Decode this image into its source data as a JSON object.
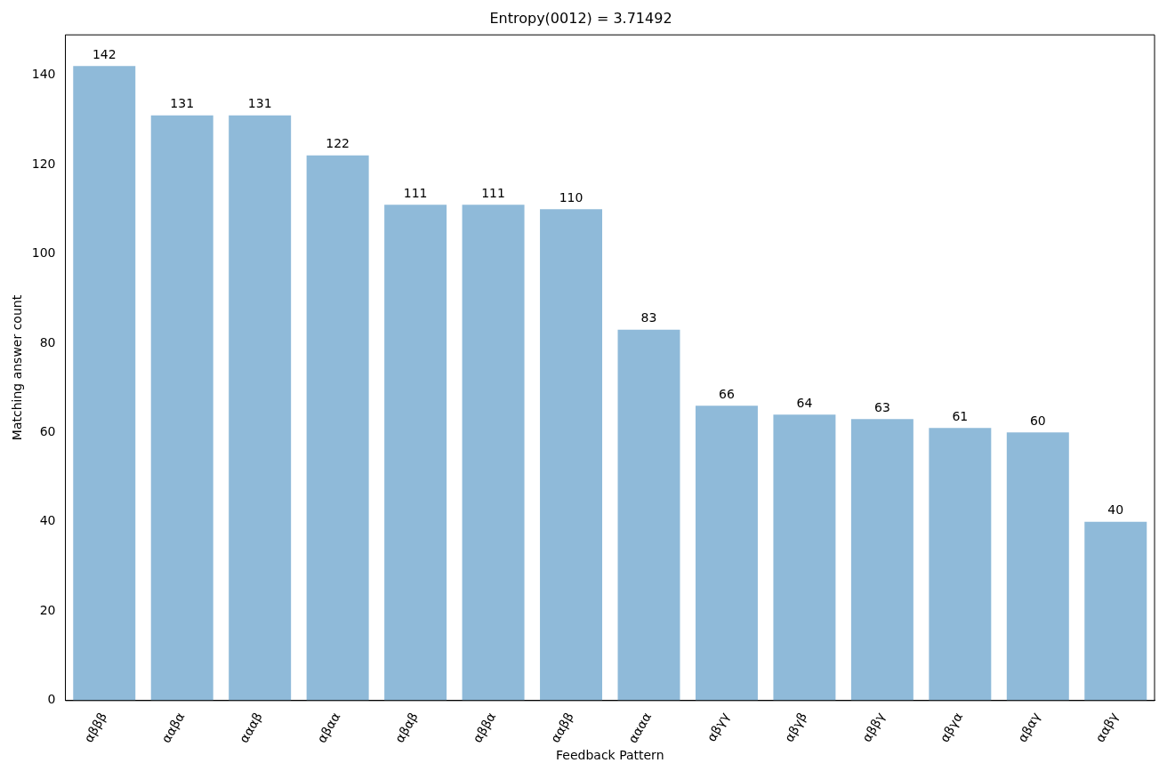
{
  "chart_data": {
    "type": "bar",
    "title": "Entropy(0012) = 3.71492",
    "xlabel": "Feedback Pattern",
    "ylabel": "Matching answer count",
    "categories": [
      "αβββ",
      "ααβα",
      "αααβ",
      "αβαα",
      "αβαβ",
      "αββα",
      "ααββ",
      "αααα",
      "αβγγ",
      "αβγβ",
      "αββγ",
      "αβγα",
      "αβαγ",
      "ααβγ"
    ],
    "values": [
      142,
      131,
      131,
      122,
      111,
      111,
      110,
      83,
      66,
      64,
      63,
      61,
      60,
      40
    ],
    "color": "#8fbad9",
    "ylim": [
      0,
      149
    ],
    "yticks": [
      0,
      20,
      40,
      60,
      80,
      100,
      120,
      140
    ],
    "grid": false,
    "data_labels": true
  }
}
